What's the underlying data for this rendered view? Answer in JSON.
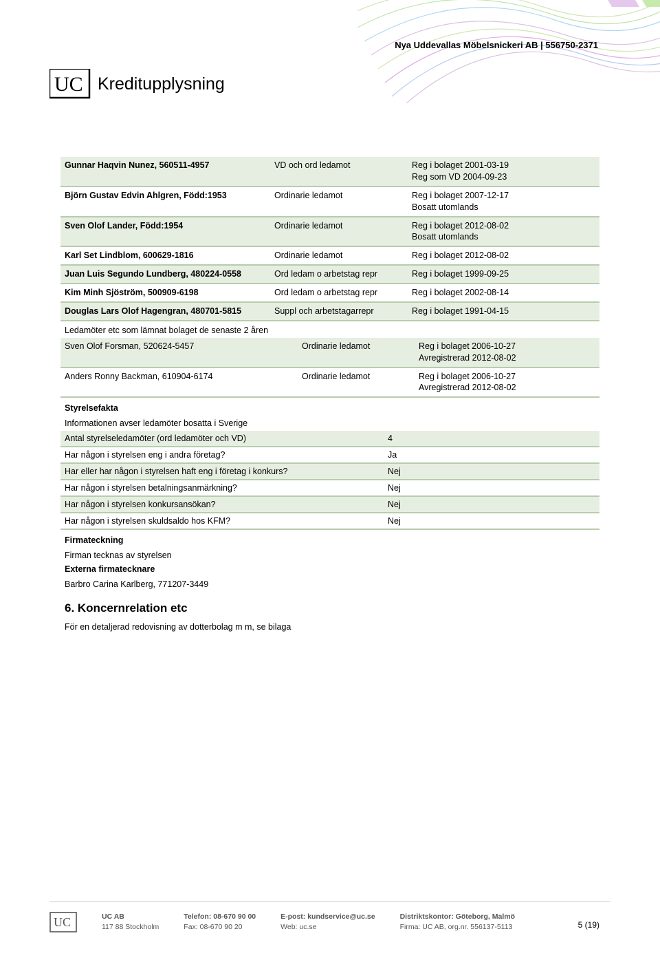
{
  "header": {
    "company_line": "Nya Uddevallas Möbelsnickeri AB | 556750-2371",
    "logo_word": "Kreditupplysning"
  },
  "board": {
    "active": [
      {
        "name": "Gunnar Haqvin Nunez, 560511-4957",
        "bold": true,
        "role": "VD och ord ledamot",
        "info": "Reg i bolaget 2001-03-19\nReg som VD 2004-09-23",
        "green": true,
        "tall": true
      },
      {
        "name": "Björn Gustav Edvin Ahlgren, Född:1953",
        "bold": true,
        "role": "Ordinarie ledamot",
        "info": "Reg i bolaget 2007-12-17\nBosatt utomlands",
        "green": false,
        "tall": true
      },
      {
        "name": "Sven Olof Lander, Född:1954",
        "bold": true,
        "role": "Ordinarie ledamot",
        "info": "Reg i bolaget 2012-08-02\nBosatt utomlands",
        "green": true,
        "tall": true
      },
      {
        "name": "Karl Set Lindblom, 600629-1816",
        "bold": true,
        "role": "Ordinarie ledamot",
        "info": "Reg i bolaget 2012-08-02",
        "green": false,
        "tall": false
      },
      {
        "name": "Juan Luis Segundo Lundberg, 480224-0558",
        "bold": true,
        "role": "Ord ledam o arbetstag repr",
        "info": "Reg i bolaget 1999-09-25",
        "green": true,
        "tall": false
      },
      {
        "name": "Kim Minh Sjöström, 500909-6198",
        "bold": true,
        "role": "Ord ledam o arbetstag repr",
        "info": "Reg i bolaget 2002-08-14",
        "green": false,
        "tall": false
      },
      {
        "name": "Douglas Lars Olof Hagengran, 480701-5815",
        "bold": true,
        "role": "Suppl och arbetstagarrepr",
        "info": "Reg i bolaget 1991-04-15",
        "green": true,
        "tall": false
      }
    ],
    "left_notice": "Ledamöter etc som lämnat bolaget de senaste 2 åren",
    "former": [
      {
        "name": "Sven Olof Forsman, 520624-5457",
        "role": "Ordinarie ledamot",
        "info": "Reg i bolaget 2006-10-27\nAvregistrerad 2012-08-02",
        "green": true
      },
      {
        "name": "Anders Ronny Backman, 610904-6174",
        "role": "Ordinarie ledamot",
        "info": "Reg i bolaget 2006-10-27\nAvregistrerad 2012-08-02",
        "green": false
      }
    ]
  },
  "facts_heading": "Styrelsefakta",
  "facts_intro": "Informationen avser ledamöter bosatta i Sverige",
  "facts": [
    {
      "label": "Antal styrelseledamöter (ord ledamöter och VD)",
      "value": "4",
      "green": true
    },
    {
      "label": "Har någon i styrelsen eng i andra företag?",
      "value": "Ja",
      "green": false
    },
    {
      "label": "Har eller har någon i styrelsen haft eng i företag i konkurs?",
      "value": "Nej",
      "green": true
    },
    {
      "label": "Har någon i styrelsen betalningsanmärkning?",
      "value": "Nej",
      "green": false
    },
    {
      "label": "Har någon i styrelsen konkursansökan?",
      "value": "Nej",
      "green": true
    },
    {
      "label": "Har någon i styrelsen skuldsaldo hos KFM?",
      "value": "Nej",
      "green": false
    }
  ],
  "firmateckning": {
    "heading": "Firmateckning",
    "line": "Firman tecknas av styrelsen",
    "externa_heading": "Externa firmatecknare",
    "externa_name": "Barbro Carina Karlberg, 771207-3449"
  },
  "section6": {
    "heading": "6. Koncernrelation etc",
    "line": "För en detaljerad redovisning av dotterbolag m m, se bilaga"
  },
  "footer": {
    "col1_l1": "UC AB",
    "col1_l2": "117 88 Stockholm",
    "col2_l1": "Telefon: 08-670 90 00",
    "col2_l2": "Fax: 08-670 90 20",
    "col3_l1": "E-post: kundservice@uc.se",
    "col3_l2": "Web: uc.se",
    "col4_l1": "Distriktskontor: Göteborg, Malmö",
    "col4_l2": "Firma: UC AB, org.nr. 556137-5113"
  },
  "page_num": "5 (19)",
  "colors": {
    "row_green": "#e6eee1",
    "row_sep": "#b7ccaf"
  }
}
